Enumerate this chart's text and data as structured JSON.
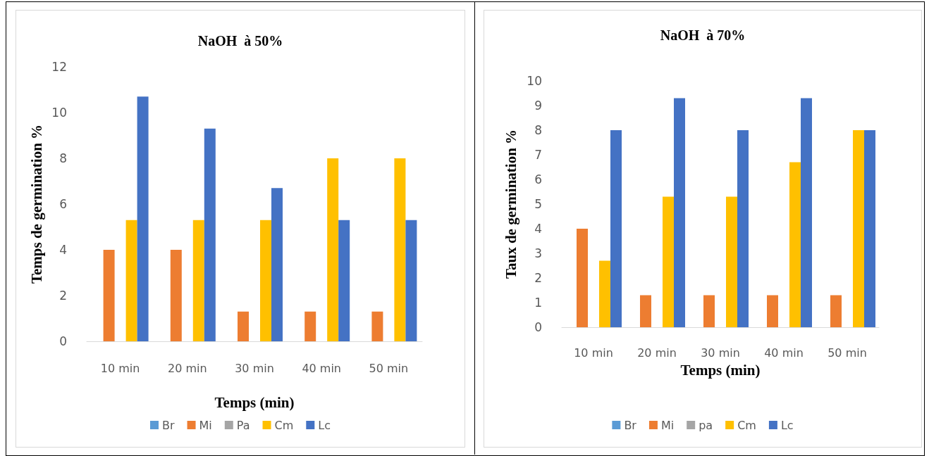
{
  "chart_data": [
    {
      "type": "bar",
      "title": "NaOH  à 50%",
      "xlabel": "Temps (min)",
      "ylabel": "Temps de germination %",
      "categories": [
        "10 min",
        "20 min",
        "30 min",
        "40 min",
        "50 min"
      ],
      "series": [
        {
          "name": "Br",
          "color": "#5b9bd5",
          "values": [
            0,
            0,
            0,
            0,
            0
          ]
        },
        {
          "name": "Mi",
          "color": "#ed7d31",
          "values": [
            4,
            4,
            1.3,
            1.3,
            1.3
          ]
        },
        {
          "name": "Pa",
          "color": "#a5a5a5",
          "values": [
            0,
            0,
            0,
            0,
            0
          ]
        },
        {
          "name": "Cm",
          "color": "#ffc000",
          "values": [
            5.3,
            5.3,
            5.3,
            8,
            8
          ]
        },
        {
          "name": "Lc",
          "color": "#4472c4",
          "values": [
            10.7,
            9.3,
            6.7,
            5.3,
            5.3
          ]
        }
      ],
      "ylim": [
        0,
        12
      ],
      "yticks": [
        0,
        2,
        4,
        6,
        8,
        10,
        12
      ],
      "grid": false,
      "legend": "bottom"
    },
    {
      "type": "bar",
      "title": "NaOH  à 70%",
      "xlabel": "Temps (min)",
      "ylabel": "Taux de germination %",
      "categories": [
        "10 min",
        "20 min",
        "30 min",
        "40 min",
        "50 min"
      ],
      "series": [
        {
          "name": "Br",
          "color": "#5b9bd5",
          "values": [
            0,
            0,
            0,
            0,
            0
          ]
        },
        {
          "name": "Mi",
          "color": "#ed7d31",
          "values": [
            4,
            1.3,
            1.3,
            1.3,
            1.3
          ]
        },
        {
          "name": "pa",
          "color": "#a5a5a5",
          "values": [
            0,
            0,
            0,
            0,
            0
          ]
        },
        {
          "name": "Cm",
          "color": "#ffc000",
          "values": [
            2.7,
            5.3,
            5.3,
            6.7,
            8
          ]
        },
        {
          "name": "Lc",
          "color": "#4472c4",
          "values": [
            8,
            9.3,
            8,
            9.3,
            8
          ]
        }
      ],
      "ylim": [
        0,
        10
      ],
      "yticks": [
        0,
        1,
        2,
        3,
        4,
        5,
        6,
        7,
        8,
        9,
        10
      ],
      "grid": false,
      "legend": "bottom"
    }
  ]
}
